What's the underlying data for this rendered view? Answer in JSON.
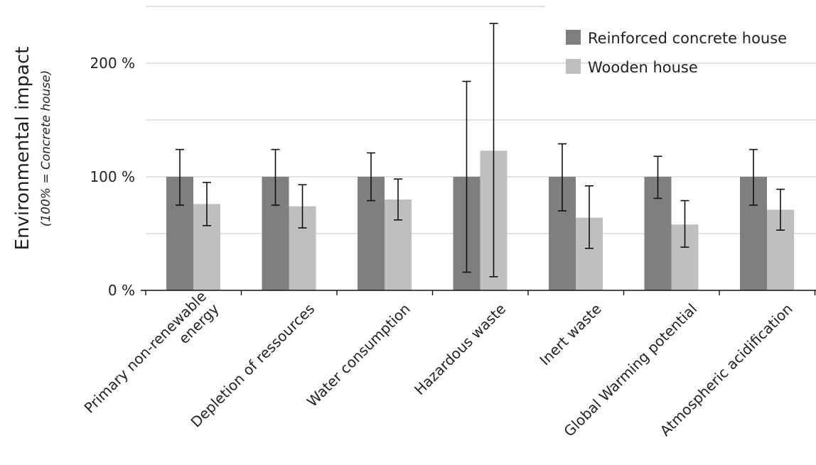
{
  "chart_data": {
    "type": "bar",
    "title": "",
    "ylabel": "Environmental impact",
    "ylabel_sub": "(100% = Concrete house)",
    "xlabel": "",
    "ylim": [
      0,
      250
    ],
    "yticks": [
      {
        "value": 0,
        "label": "0 %"
      },
      {
        "value": 100,
        "label": "100 %"
      },
      {
        "value": 200,
        "label": "200 %"
      }
    ],
    "gridlines": [
      50,
      100,
      150,
      200,
      250
    ],
    "grid": true,
    "legend_position": "top-right",
    "categories": [
      [
        "Primary non-renewable",
        "energy"
      ],
      [
        "Depletion of ressources"
      ],
      [
        "Water consumption"
      ],
      [
        "Hazardous waste"
      ],
      [
        "Inert waste"
      ],
      [
        "Global Warming potential"
      ],
      [
        "Atmospheric acidification"
      ]
    ],
    "series": [
      {
        "name": "Reinforced concrete house",
        "color": "#7f7f7f",
        "values": [
          100,
          100,
          100,
          100,
          100,
          100,
          100
        ],
        "err_low": [
          75,
          75,
          79,
          16,
          70,
          81,
          75
        ],
        "err_high": [
          124,
          124,
          121,
          184,
          129,
          118,
          124
        ]
      },
      {
        "name": "Wooden house",
        "color": "#bfbfbf",
        "values": [
          76,
          74,
          80,
          123,
          64,
          58,
          71
        ],
        "err_low": [
          57,
          55,
          62,
          12,
          37,
          38,
          53
        ],
        "err_high": [
          95,
          93,
          98,
          235,
          92,
          79,
          89
        ]
      }
    ]
  }
}
